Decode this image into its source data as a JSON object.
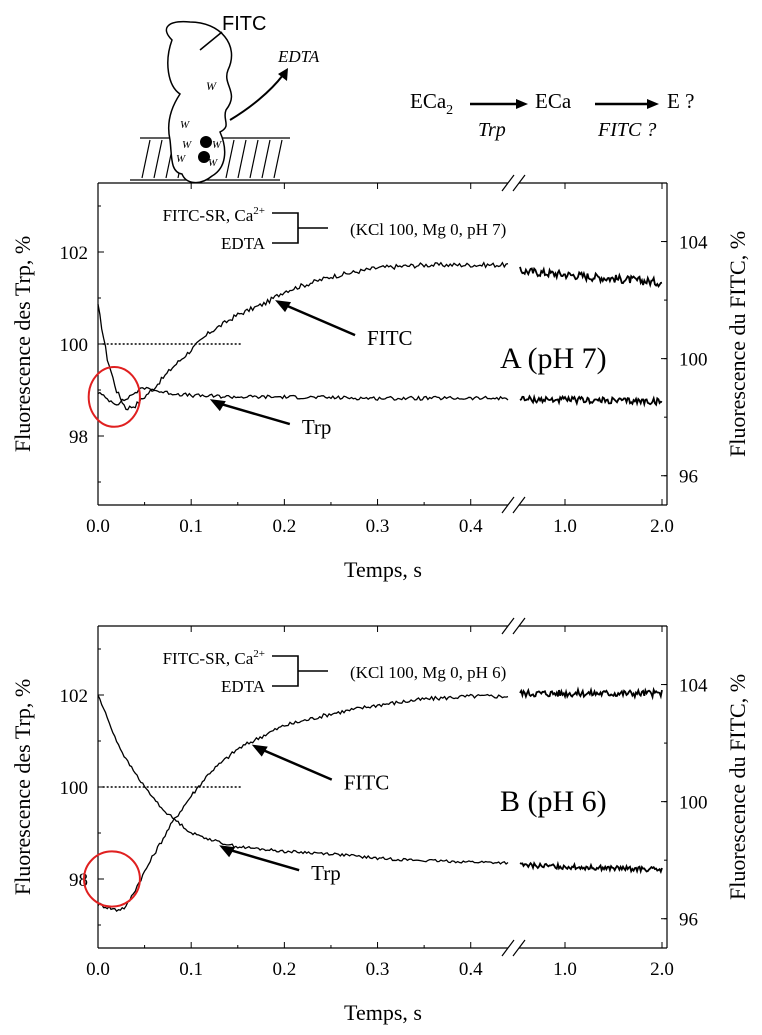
{
  "scheme": {
    "label": "FITC",
    "release": "EDTA",
    "trp_marker": "W",
    "steps": [
      "ECa2",
      "ECa",
      "E ?"
    ],
    "arrows": [
      "Trp",
      "FITC ?"
    ]
  },
  "chart_data": [
    {
      "type": "line",
      "panel_label": "A (pH 7)",
      "legend_lines": [
        "FITC-SR, Ca2+",
        "EDTA"
      ],
      "conditions": "(KCl 100, Mg 0, pH 7)",
      "xlabel": "Temps, s",
      "ylabel_left": "Fluorescence des Trp, %",
      "ylabel_right": "Fluorescence du FITC, %",
      "x_ticks": [
        "0.0",
        "0.1",
        "0.2",
        "0.3",
        "0.4",
        "1.0",
        "2.0"
      ],
      "y_ticks_left": [
        98,
        100,
        102
      ],
      "y_ticks_right": [
        96,
        100,
        104
      ],
      "ylim_left": [
        96.5,
        103.5
      ],
      "ylim_right": [
        95,
        106
      ],
      "xlim": [
        0,
        0.44
      ],
      "x_break": {
        "after": 0.44,
        "late_range": [
          1.0,
          2.0
        ]
      },
      "reference_line": {
        "y": 100,
        "x": [
          0.005,
          0.155
        ]
      },
      "annotations": [
        {
          "text": "FITC",
          "series": "FITC",
          "at": 0.19
        },
        {
          "text": "Trp",
          "series": "Trp",
          "at": 0.12
        }
      ],
      "highlight": {
        "shape": "ellipse",
        "x": [
          -0.01,
          0.045
        ],
        "y": [
          98.2,
          99.5
        ]
      },
      "series": [
        {
          "name": "FITC",
          "axis": "right",
          "noise": 0.08,
          "points": [
            [
              0,
              101.8
            ],
            [
              0.01,
              100.0
            ],
            [
              0.02,
              98.9
            ],
            [
              0.03,
              98.3
            ],
            [
              0.04,
              98.4
            ],
            [
              0.06,
              99.0
            ],
            [
              0.08,
              99.7
            ],
            [
              0.1,
              100.3
            ],
            [
              0.12,
              100.9
            ],
            [
              0.15,
              101.5
            ],
            [
              0.18,
              101.9
            ],
            [
              0.2,
              102.3
            ],
            [
              0.25,
              102.8
            ],
            [
              0.3,
              103.1
            ],
            [
              0.35,
              103.2
            ],
            [
              0.4,
              103.2
            ],
            [
              0.44,
              103.2
            ]
          ],
          "late": [
            [
              1.0,
              103.0
            ],
            [
              1.5,
              102.8
            ],
            [
              2.0,
              102.6
            ]
          ]
        },
        {
          "name": "Trp",
          "axis": "left",
          "noise": 0.04,
          "points": [
            [
              0,
              98.95
            ],
            [
              0.01,
              98.8
            ],
            [
              0.02,
              98.7
            ],
            [
              0.03,
              98.8
            ],
            [
              0.04,
              98.95
            ],
            [
              0.05,
              99.05
            ],
            [
              0.07,
              98.95
            ],
            [
              0.1,
              98.88
            ],
            [
              0.15,
              98.85
            ],
            [
              0.2,
              98.85
            ],
            [
              0.3,
              98.82
            ],
            [
              0.44,
              98.82
            ]
          ],
          "late": [
            [
              1.0,
              98.8
            ],
            [
              2.0,
              98.75
            ]
          ]
        }
      ]
    },
    {
      "type": "line",
      "panel_label": "B (pH 6)",
      "legend_lines": [
        "FITC-SR, Ca2+",
        "EDTA"
      ],
      "conditions": "(KCl 100, Mg 0, pH 6)",
      "xlabel": "Temps, s",
      "ylabel_left": "Fluorescence des Trp, %",
      "ylabel_right": "Fluorescence du FITC, %",
      "x_ticks": [
        "0.0",
        "0.1",
        "0.2",
        "0.3",
        "0.4",
        "1.0",
        "2.0"
      ],
      "y_ticks_left": [
        98,
        100,
        102
      ],
      "y_ticks_right": [
        96,
        100,
        104
      ],
      "ylim_left": [
        96.5,
        103.5
      ],
      "ylim_right": [
        95,
        106
      ],
      "xlim": [
        0,
        0.44
      ],
      "x_break": {
        "after": 0.44,
        "late_range": [
          1.0,
          2.0
        ]
      },
      "reference_line": {
        "y": 100,
        "x": [
          0.005,
          0.155
        ]
      },
      "annotations": [
        {
          "text": "FITC",
          "series": "FITC",
          "at": 0.165
        },
        {
          "text": "Trp",
          "series": "Trp",
          "at": 0.13
        }
      ],
      "highlight": {
        "shape": "ellipse",
        "x": [
          -0.015,
          0.045
        ],
        "y": [
          97.4,
          98.6
        ]
      },
      "series": [
        {
          "name": "FITC",
          "axis": "right",
          "noise": 0.07,
          "points": [
            [
              0,
              96.5
            ],
            [
              0.01,
              96.4
            ],
            [
              0.02,
              96.3
            ],
            [
              0.03,
              96.4
            ],
            [
              0.04,
              97.0
            ],
            [
              0.06,
              98.2
            ],
            [
              0.08,
              99.3
            ],
            [
              0.1,
              100.2
            ],
            [
              0.12,
              101.0
            ],
            [
              0.15,
              101.8
            ],
            [
              0.18,
              102.3
            ],
            [
              0.2,
              102.6
            ],
            [
              0.25,
              103.0
            ],
            [
              0.3,
              103.3
            ],
            [
              0.35,
              103.5
            ],
            [
              0.4,
              103.6
            ],
            [
              0.44,
              103.6
            ]
          ],
          "late": [
            [
              1.0,
              103.7
            ],
            [
              2.0,
              103.7
            ]
          ]
        },
        {
          "name": "Trp",
          "axis": "left",
          "noise": 0.03,
          "points": [
            [
              0,
              102.0
            ],
            [
              0.01,
              101.5
            ],
            [
              0.02,
              101.0
            ],
            [
              0.03,
              100.6
            ],
            [
              0.05,
              100.0
            ],
            [
              0.07,
              99.5
            ],
            [
              0.1,
              99.0
            ],
            [
              0.13,
              98.8
            ],
            [
              0.15,
              98.7
            ],
            [
              0.2,
              98.6
            ],
            [
              0.25,
              98.55
            ],
            [
              0.3,
              98.45
            ],
            [
              0.35,
              98.4
            ],
            [
              0.44,
              98.35
            ]
          ],
          "late": [
            [
              1.0,
              98.3
            ],
            [
              2.0,
              98.2
            ]
          ]
        }
      ]
    }
  ]
}
